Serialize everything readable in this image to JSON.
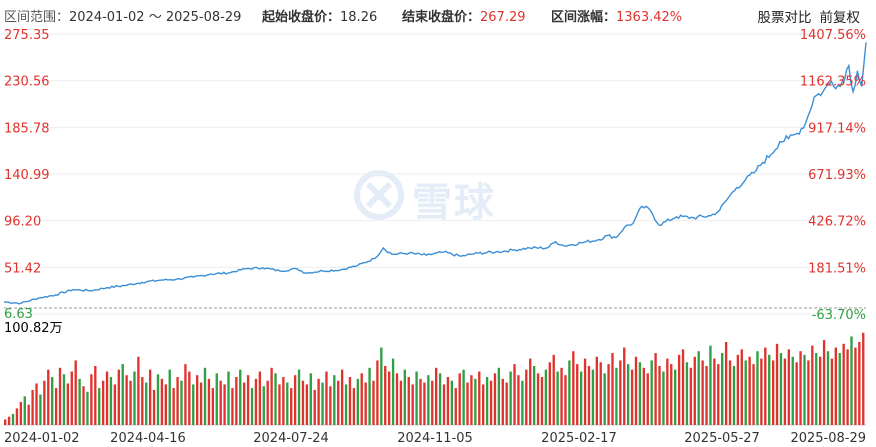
{
  "header": {
    "range_label": "区间范围：",
    "range_value": "2024-01-02 ～ 2025-08-29",
    "start_label": "起始收盘价：",
    "start_value": "18.26",
    "end_label": "结束收盘价：",
    "end_value": "267.29",
    "change_label": "区间涨幅：",
    "change_value": "1363.42%",
    "compare_link": "股票对比",
    "adjust_link": "前复权"
  },
  "watermark": {
    "text": "雪球"
  },
  "colors": {
    "line": "#3c8fd6",
    "red": "#e0332e",
    "green": "#2ea043",
    "axis_text": "#333333",
    "grid": "#eeeeee"
  },
  "chart_data": {
    "type": "line",
    "price_axis": {
      "ylim": [
        6.63,
        275.35
      ],
      "tick_labels": [
        "275.35",
        "230.56",
        "185.78",
        "140.99",
        "96.20",
        "51.42",
        "6.63"
      ],
      "tick_values": [
        275.35,
        230.56,
        185.78,
        140.99,
        96.2,
        51.42,
        6.63
      ]
    },
    "percent_axis": {
      "tick_labels": [
        "1407.56%",
        "1162.35%",
        "917.14%",
        "671.93%",
        "426.72%",
        "181.51%",
        "-63.70%"
      ]
    },
    "x_tick_labels": [
      "2024-01-02",
      "2024-04-16",
      "2024-07-24",
      "2024-11-05",
      "2025-02-17",
      "2025-05-27",
      "2025-08-29"
    ],
    "x_tick_positions": [
      0,
      0.167,
      0.333,
      0.5,
      0.667,
      0.833,
      1.0
    ],
    "series": [
      {
        "x": [
          0.0,
          0.02,
          0.04,
          0.06,
          0.08,
          0.1,
          0.12,
          0.14,
          0.16,
          0.18,
          0.2,
          0.22,
          0.24,
          0.26,
          0.28,
          0.3,
          0.32,
          0.34,
          0.35,
          0.37,
          0.39,
          0.41,
          0.43,
          0.44,
          0.45,
          0.47,
          0.49,
          0.51,
          0.53,
          0.55,
          0.57,
          0.59,
          0.61,
          0.63,
          0.64,
          0.65,
          0.67,
          0.69,
          0.7,
          0.71,
          0.72,
          0.73,
          0.74,
          0.75,
          0.76,
          0.78,
          0.8,
          0.82,
          0.83,
          0.84,
          0.85,
          0.86,
          0.87,
          0.88,
          0.89,
          0.9,
          0.91,
          0.92,
          0.93,
          0.94,
          0.95,
          0.96,
          0.97,
          0.98,
          0.985,
          0.99,
          0.995,
          1.0
        ],
        "values": [
          18.26,
          17.0,
          22.0,
          25.0,
          30.0,
          29.0,
          32.0,
          34.0,
          37.0,
          39.0,
          40.0,
          42.0,
          45.0,
          46.0,
          50.0,
          51.0,
          48.0,
          50.0,
          46.0,
          48.0,
          49.0,
          53.0,
          60.0,
          70.0,
          64.0,
          65.0,
          63.0,
          66.0,
          62.0,
          65.0,
          66.0,
          68.0,
          70.0,
          70.0,
          76.0,
          72.0,
          75.0,
          78.0,
          82.0,
          80.0,
          90.0,
          94.0,
          110.0,
          106.0,
          92.0,
          100.0,
          99.0,
          101.0,
          106.0,
          118.0,
          128.0,
          135.0,
          142.0,
          152.0,
          160.0,
          172.0,
          175.0,
          180.0,
          190.0,
          215.0,
          220.0,
          230.0,
          225.0,
          245.0,
          220.0,
          240.0,
          225.0,
          267.29
        ]
      }
    ],
    "volume_axis": {
      "tick_label": "100.82万",
      "max": 100.82
    },
    "volume": [
      [
        6,
        1
      ],
      [
        9,
        1
      ],
      [
        12,
        0
      ],
      [
        18,
        1
      ],
      [
        25,
        1
      ],
      [
        31,
        0
      ],
      [
        22,
        1
      ],
      [
        38,
        1
      ],
      [
        45,
        1
      ],
      [
        33,
        0
      ],
      [
        48,
        1
      ],
      [
        60,
        1
      ],
      [
        52,
        0
      ],
      [
        40,
        1
      ],
      [
        62,
        1
      ],
      [
        55,
        0
      ],
      [
        45,
        1
      ],
      [
        58,
        1
      ],
      [
        70,
        1
      ],
      [
        50,
        0
      ],
      [
        42,
        1
      ],
      [
        36,
        0
      ],
      [
        55,
        1
      ],
      [
        64,
        1
      ],
      [
        40,
        0
      ],
      [
        48,
        1
      ],
      [
        58,
        1
      ],
      [
        52,
        0
      ],
      [
        44,
        1
      ],
      [
        60,
        1
      ],
      [
        66,
        0
      ],
      [
        54,
        1
      ],
      [
        48,
        1
      ],
      [
        58,
        0
      ],
      [
        74,
        1
      ],
      [
        52,
        1
      ],
      [
        46,
        0
      ],
      [
        60,
        1
      ],
      [
        38,
        1
      ],
      [
        55,
        0
      ],
      [
        50,
        1
      ],
      [
        44,
        1
      ],
      [
        60,
        0
      ],
      [
        40,
        1
      ],
      [
        52,
        1
      ],
      [
        48,
        0
      ],
      [
        66,
        1
      ],
      [
        58,
        1
      ],
      [
        44,
        0
      ],
      [
        54,
        1
      ],
      [
        46,
        1
      ],
      [
        62,
        0
      ],
      [
        50,
        1
      ],
      [
        40,
        1
      ],
      [
        56,
        0
      ],
      [
        48,
        1
      ],
      [
        44,
        1
      ],
      [
        58,
        0
      ],
      [
        40,
        1
      ],
      [
        52,
        1
      ],
      [
        60,
        0
      ],
      [
        46,
        1
      ],
      [
        54,
        1
      ],
      [
        40,
        0
      ],
      [
        50,
        1
      ],
      [
        58,
        1
      ],
      [
        42,
        0
      ],
      [
        48,
        1
      ],
      [
        62,
        1
      ],
      [
        56,
        0
      ],
      [
        44,
        1
      ],
      [
        52,
        1
      ],
      [
        46,
        0
      ],
      [
        40,
        1
      ],
      [
        54,
        1
      ],
      [
        60,
        0
      ],
      [
        48,
        1
      ],
      [
        44,
        1
      ],
      [
        56,
        0
      ],
      [
        38,
        1
      ],
      [
        50,
        1
      ],
      [
        46,
        0
      ],
      [
        58,
        1
      ],
      [
        42,
        1
      ],
      [
        54,
        0
      ],
      [
        48,
        1
      ],
      [
        60,
        1
      ],
      [
        44,
        0
      ],
      [
        52,
        1
      ],
      [
        40,
        1
      ],
      [
        50,
        0
      ],
      [
        56,
        1
      ],
      [
        46,
        1
      ],
      [
        62,
        0
      ],
      [
        48,
        1
      ],
      [
        70,
        1
      ],
      [
        84,
        0
      ],
      [
        64,
        1
      ],
      [
        58,
        1
      ],
      [
        72,
        0
      ],
      [
        56,
        1
      ],
      [
        48,
        1
      ],
      [
        60,
        0
      ],
      [
        52,
        1
      ],
      [
        44,
        1
      ],
      [
        58,
        0
      ],
      [
        50,
        1
      ],
      [
        46,
        1
      ],
      [
        54,
        0
      ],
      [
        48,
        1
      ],
      [
        62,
        1
      ],
      [
        56,
        0
      ],
      [
        44,
        1
      ],
      [
        52,
        1
      ],
      [
        48,
        0
      ],
      [
        40,
        1
      ],
      [
        56,
        1
      ],
      [
        60,
        0
      ],
      [
        46,
        1
      ],
      [
        54,
        1
      ],
      [
        50,
        0
      ],
      [
        58,
        1
      ],
      [
        44,
        1
      ],
      [
        52,
        0
      ],
      [
        48,
        1
      ],
      [
        56,
        1
      ],
      [
        62,
        0
      ],
      [
        50,
        1
      ],
      [
        46,
        1
      ],
      [
        58,
        0
      ],
      [
        66,
        1
      ],
      [
        54,
        1
      ],
      [
        48,
        0
      ],
      [
        60,
        1
      ],
      [
        72,
        1
      ],
      [
        64,
        0
      ],
      [
        56,
        1
      ],
      [
        52,
        1
      ],
      [
        60,
        0
      ],
      [
        68,
        1
      ],
      [
        76,
        1
      ],
      [
        58,
        0
      ],
      [
        62,
        1
      ],
      [
        54,
        1
      ],
      [
        70,
        0
      ],
      [
        80,
        1
      ],
      [
        66,
        1
      ],
      [
        58,
        0
      ],
      [
        72,
        1
      ],
      [
        64,
        1
      ],
      [
        60,
        0
      ],
      [
        74,
        1
      ],
      [
        68,
        1
      ],
      [
        56,
        0
      ],
      [
        66,
        1
      ],
      [
        78,
        1
      ],
      [
        62,
        0
      ],
      [
        70,
        1
      ],
      [
        84,
        1
      ],
      [
        66,
        0
      ],
      [
        60,
        1
      ],
      [
        74,
        1
      ],
      [
        68,
        0
      ],
      [
        62,
        1
      ],
      [
        56,
        1
      ],
      [
        70,
        0
      ],
      [
        78,
        1
      ],
      [
        64,
        1
      ],
      [
        58,
        0
      ],
      [
        72,
        1
      ],
      [
        66,
        1
      ],
      [
        60,
        0
      ],
      [
        76,
        1
      ],
      [
        82,
        1
      ],
      [
        68,
        0
      ],
      [
        62,
        1
      ],
      [
        74,
        1
      ],
      [
        80,
        0
      ],
      [
        70,
        1
      ],
      [
        64,
        1
      ],
      [
        86,
        0
      ],
      [
        72,
        1
      ],
      [
        66,
        1
      ],
      [
        78,
        0
      ],
      [
        90,
        1
      ],
      [
        70,
        1
      ],
      [
        64,
        0
      ],
      [
        76,
        1
      ],
      [
        82,
        1
      ],
      [
        70,
        0
      ],
      [
        74,
        1
      ],
      [
        66,
        1
      ],
      [
        80,
        0
      ],
      [
        72,
        1
      ],
      [
        84,
        1
      ],
      [
        76,
        0
      ],
      [
        70,
        1
      ],
      [
        88,
        1
      ],
      [
        78,
        0
      ],
      [
        72,
        1
      ],
      [
        82,
        1
      ],
      [
        74,
        0
      ],
      [
        68,
        1
      ],
      [
        80,
        1
      ],
      [
        76,
        0
      ],
      [
        70,
        1
      ],
      [
        86,
        1
      ],
      [
        78,
        0
      ],
      [
        74,
        1
      ],
      [
        92,
        1
      ],
      [
        80,
        0
      ],
      [
        72,
        1
      ],
      [
        84,
        1
      ],
      [
        78,
        0
      ],
      [
        88,
        1
      ],
      [
        82,
        1
      ],
      [
        96,
        0
      ],
      [
        84,
        1
      ],
      [
        90,
        1
      ],
      [
        100,
        1
      ]
    ]
  }
}
